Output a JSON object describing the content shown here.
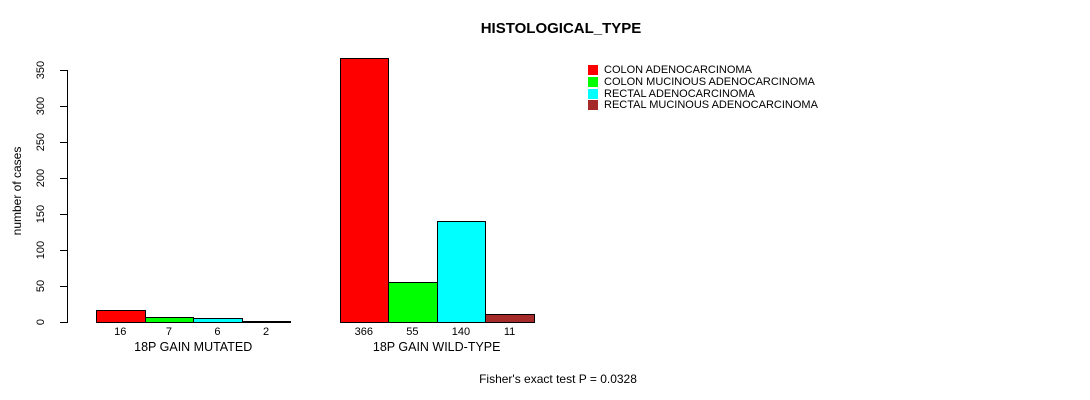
{
  "chart_data": {
    "type": "bar",
    "title": "HISTOLOGICAL_TYPE",
    "ylabel": "number of cases",
    "xlabel": "",
    "ylim": [
      0,
      350
    ],
    "yticks": [
      0,
      50,
      100,
      150,
      200,
      250,
      300,
      350
    ],
    "categories": [
      "18P GAIN MUTATED",
      "18P GAIN WILD-TYPE"
    ],
    "series": [
      {
        "name": "COLON ADENOCARCINOMA",
        "color": "#ff0000",
        "values": [
          16,
          366
        ]
      },
      {
        "name": "COLON MUCINOUS ADENOCARCINOMA",
        "color": "#00ff00",
        "values": [
          7,
          55
        ]
      },
      {
        "name": "RECTAL ADENOCARCINOMA",
        "color": "#00ffff",
        "values": [
          6,
          140
        ]
      },
      {
        "name": "RECTAL MUCINOUS ADENOCARCINOMA",
        "color": "#a52a2a",
        "values": [
          2,
          11
        ]
      }
    ],
    "bar_value_labels": [
      [
        "16",
        "7",
        "6",
        "2"
      ],
      [
        "366",
        "55",
        "140",
        "11"
      ]
    ],
    "legend_position": "top-right",
    "grid": false,
    "annotation": "Fisher's exact test P = 0.0328"
  },
  "colors": {
    "axis": "#000000",
    "background": "#ffffff",
    "text": "#000000"
  }
}
